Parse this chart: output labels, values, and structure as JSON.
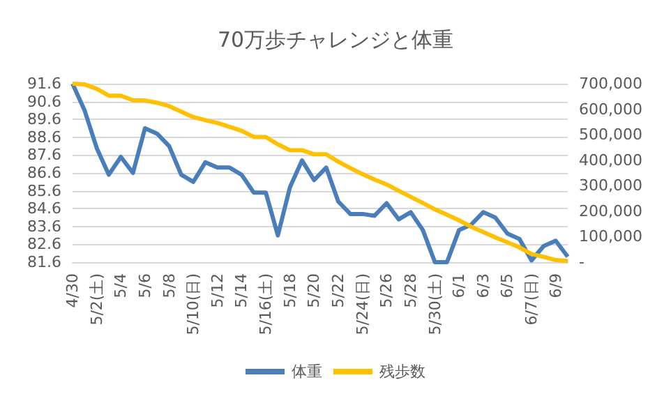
{
  "chart_data": {
    "type": "line",
    "title": "70万歩チャレンジと体重",
    "categories": [
      "4/30",
      null,
      "5/2(土)",
      null,
      "5/4",
      null,
      "5/6",
      null,
      "5/8",
      null,
      "5/10(日)",
      null,
      "5/12",
      null,
      "5/14",
      null,
      "5/16(土)",
      null,
      "5/18",
      null,
      "5/20",
      null,
      "5/22",
      null,
      "5/24(日)",
      null,
      "5/26",
      null,
      "5/28",
      null,
      "5/30(土)",
      null,
      "6/1",
      null,
      "6/3",
      null,
      "6/5",
      null,
      "6/7(日)",
      null,
      "6/9",
      null
    ],
    "series": [
      {
        "name": "体重",
        "color": "#4a7ebb",
        "values": [
          91.6,
          90.1,
          88.0,
          86.5,
          87.5,
          86.6,
          89.1,
          88.8,
          88.1,
          86.5,
          86.1,
          87.2,
          86.9,
          86.9,
          86.5,
          85.5,
          85.5,
          83.1,
          85.8,
          87.3,
          86.2,
          86.9,
          85.0,
          84.3,
          84.3,
          84.2,
          84.9,
          84.0,
          84.4,
          83.4,
          81.6,
          81.6,
          83.4,
          83.7,
          84.4,
          84.1,
          83.2,
          82.9,
          81.7,
          82.5,
          82.8,
          81.9
        ]
      },
      {
        "name": "残歩数",
        "color": "#ffc000",
        "axis": "y2",
        "values": [
          700000,
          697000,
          680000,
          653000,
          653000,
          635000,
          634000,
          625000,
          612000,
          590000,
          569000,
          557000,
          546000,
          531000,
          515000,
          491000,
          491000,
          462000,
          439000,
          439000,
          423000,
          423000,
          394000,
          369000,
          345000,
          324000,
          305000,
          280000,
          256000,
          232000,
          207000,
          186000,
          164000,
          139000,
          118000,
          97000,
          78000,
          58000,
          32000,
          21000,
          8000,
          5000
        ]
      }
    ],
    "ylim": [
      81.6,
      91.6
    ],
    "yticks": [
      81.6,
      82.6,
      83.6,
      84.6,
      85.6,
      86.6,
      87.6,
      88.6,
      89.6,
      90.6,
      91.6
    ],
    "y2lim": [
      0,
      700000
    ],
    "y2ticks": [
      {
        "value": 0,
        "label": "-"
      },
      {
        "value": 100000,
        "label": "100,000"
      },
      {
        "value": 200000,
        "label": "200,000"
      },
      {
        "value": 300000,
        "label": "300,000"
      },
      {
        "value": 400000,
        "label": "400,000"
      },
      {
        "value": 500000,
        "label": "500,000"
      },
      {
        "value": 600000,
        "label": "600,000"
      },
      {
        "value": 700000,
        "label": "700,000"
      }
    ],
    "grid": "y",
    "legend": "bottom",
    "marker": "none",
    "line_style": "solid"
  }
}
